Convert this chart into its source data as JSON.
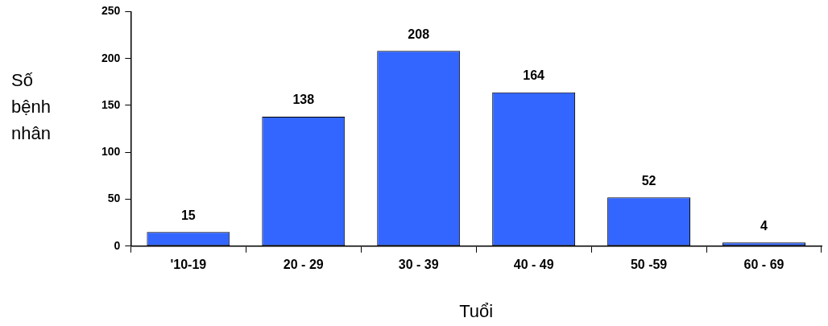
{
  "chart_data": {
    "type": "bar",
    "xlabel": "Tuổi",
    "ylabel": "Số bệnh nhân",
    "categories": [
      "'10-19",
      "20 - 29",
      "30 - 39",
      "40 - 49",
      "50 -59",
      "60 - 69"
    ],
    "values": [
      15,
      138,
      208,
      164,
      52,
      4
    ],
    "color": "#3366ff",
    "ylim": [
      0,
      250
    ],
    "yticks": [
      0,
      50,
      100,
      150,
      200,
      250
    ],
    "grid": false,
    "legend": false,
    "data_labels": true
  }
}
